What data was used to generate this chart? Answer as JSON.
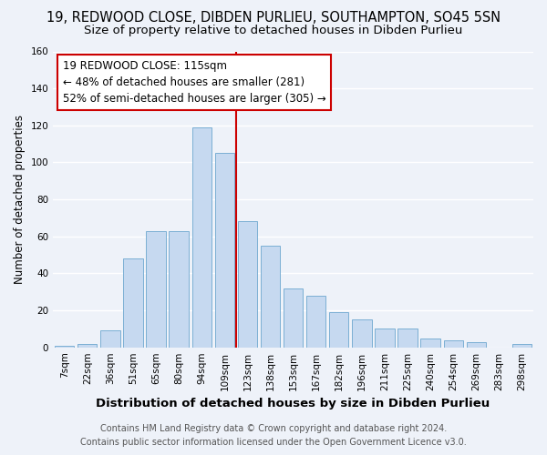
{
  "title": "19, REDWOOD CLOSE, DIBDEN PURLIEU, SOUTHAMPTON, SO45 5SN",
  "subtitle": "Size of property relative to detached houses in Dibden Purlieu",
  "xlabel": "Distribution of detached houses by size in Dibden Purlieu",
  "ylabel": "Number of detached properties",
  "bar_labels": [
    "7sqm",
    "22sqm",
    "36sqm",
    "51sqm",
    "65sqm",
    "80sqm",
    "94sqm",
    "109sqm",
    "123sqm",
    "138sqm",
    "153sqm",
    "167sqm",
    "182sqm",
    "196sqm",
    "211sqm",
    "225sqm",
    "240sqm",
    "254sqm",
    "269sqm",
    "283sqm",
    "298sqm"
  ],
  "bar_values": [
    1,
    2,
    9,
    48,
    63,
    63,
    119,
    105,
    68,
    55,
    32,
    28,
    19,
    15,
    10,
    10,
    5,
    4,
    3,
    0,
    2
  ],
  "bar_color": "#c6d9f0",
  "bar_edge_color": "#7bafd4",
  "highlight_line_color": "#cc0000",
  "annotation_title": "19 REDWOOD CLOSE: 115sqm",
  "annotation_line1": "← 48% of detached houses are smaller (281)",
  "annotation_line2": "52% of semi-detached houses are larger (305) →",
  "annotation_box_color": "#ffffff",
  "annotation_box_edge_color": "#cc0000",
  "ylim": [
    0,
    160
  ],
  "yticks": [
    0,
    20,
    40,
    60,
    80,
    100,
    120,
    140,
    160
  ],
  "footer_line1": "Contains HM Land Registry data © Crown copyright and database right 2024.",
  "footer_line2": "Contains public sector information licensed under the Open Government Licence v3.0.",
  "bg_color": "#eef2f9",
  "grid_color": "#ffffff",
  "title_fontsize": 10.5,
  "subtitle_fontsize": 9.5,
  "ylabel_fontsize": 8.5,
  "xlabel_fontsize": 9.5,
  "tick_fontsize": 7.5,
  "footer_fontsize": 7,
  "annotation_fontsize": 8.5
}
